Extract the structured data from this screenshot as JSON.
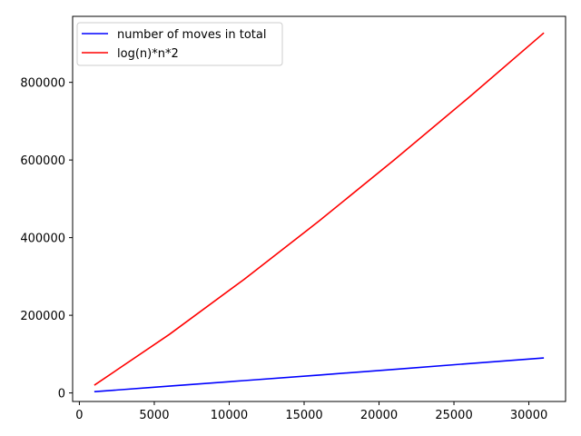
{
  "chart_data": {
    "type": "line",
    "title": "",
    "xlabel": "",
    "ylabel": "",
    "xlim": [
      -450,
      32450
    ],
    "ylim": [
      -22000,
      970000
    ],
    "x_ticks": [
      0,
      5000,
      10000,
      15000,
      20000,
      25000,
      30000
    ],
    "x_tick_labels": [
      "0",
      "5000",
      "10000",
      "15000",
      "20000",
      "25000",
      "30000"
    ],
    "y_ticks": [
      0,
      200000,
      400000,
      600000,
      800000
    ],
    "y_tick_labels": [
      "0",
      "200000",
      "400000",
      "600000",
      "800000"
    ],
    "grid": false,
    "legend_position": "upper-left",
    "x": [
      1000,
      6000,
      11000,
      16000,
      21000,
      26000,
      31000
    ],
    "series": [
      {
        "name": "number of moves in total",
        "color": "#0000ff",
        "values": [
          3200,
          17500,
          31800,
          46200,
          60500,
          75500,
          90000
        ]
      },
      {
        "name": "log(n)*n*2",
        "color": "#ff0000",
        "values": [
          19900,
          150600,
          292600,
          442900,
          599600,
          761400,
          927400
        ]
      }
    ]
  }
}
